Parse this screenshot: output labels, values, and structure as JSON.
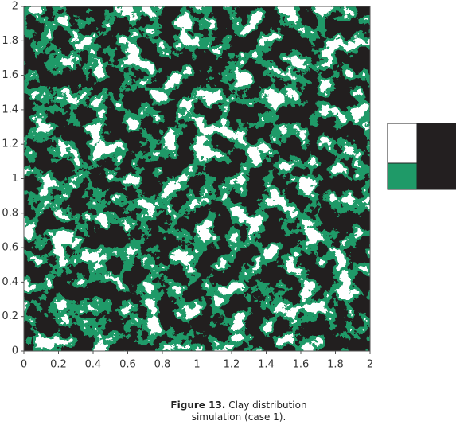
{
  "chart_data": {
    "type": "image",
    "xlim": [
      0,
      2
    ],
    "ylim": [
      0,
      2
    ],
    "xticks": [
      0,
      0.2,
      0.4,
      0.6,
      0.8,
      1,
      1.2,
      1.4,
      1.6,
      1.8,
      2
    ],
    "yticks": [
      0,
      0.2,
      0.4,
      0.6,
      0.8,
      1,
      1.2,
      1.4,
      1.6,
      1.8,
      2
    ],
    "colors": [
      "#ffffff",
      "#1f9a68",
      "#231f20"
    ]
  },
  "caption": {
    "label": "Figure 13.",
    "text": "Clay distribution simulation (case 1)."
  }
}
